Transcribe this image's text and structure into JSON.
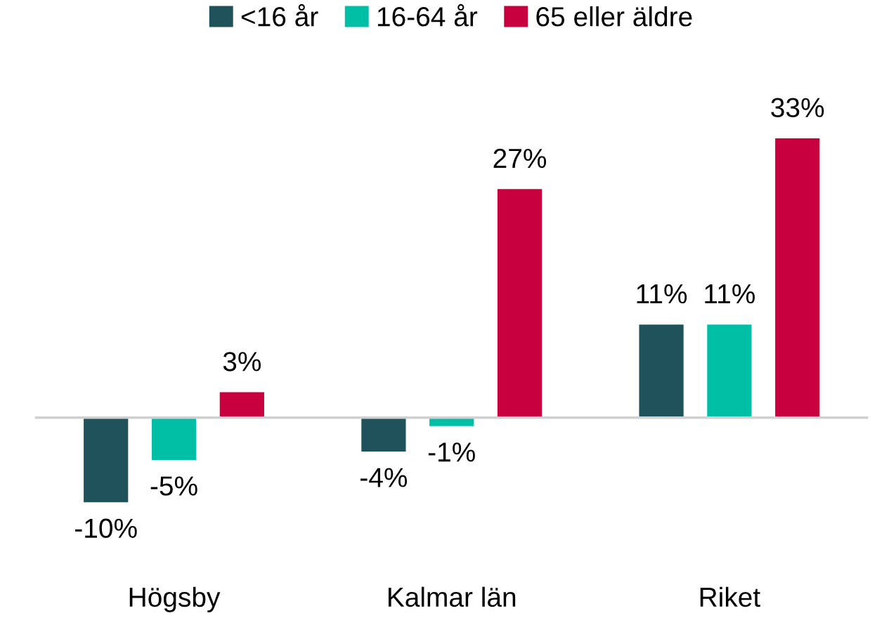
{
  "chart_data": {
    "type": "bar",
    "categories": [
      "Högsby",
      "Kalmar län",
      "Riket"
    ],
    "series": [
      {
        "name": "<16 år",
        "color": "#1f525b",
        "values": [
          -10,
          -4,
          11
        ],
        "value_labels": [
          "-10%",
          "-4%",
          "11%"
        ]
      },
      {
        "name": "16-64 år",
        "color": "#00bfa5",
        "values": [
          -5,
          -1,
          11
        ],
        "value_labels": [
          "-5%",
          "-1%",
          "11%"
        ]
      },
      {
        "name": "65 eller äldre",
        "color": "#c8003f",
        "values": [
          3,
          27,
          33
        ],
        "value_labels": [
          "3%",
          "27%",
          "33%"
        ]
      }
    ],
    "legend": "top",
    "grid": false
  }
}
